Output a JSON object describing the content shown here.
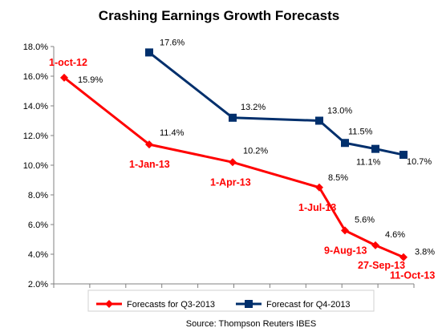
{
  "chart_data": {
    "type": "line",
    "title": "Crashing Earnings Growth Forecasts",
    "source": "Source: Thompson Reuters IBES",
    "ylim": [
      2.0,
      18.0
    ],
    "y_ticks": [
      "2.0%",
      "4.0%",
      "6.0%",
      "8.0%",
      "10.0%",
      "12.0%",
      "14.0%",
      "16.0%",
      "18.0%"
    ],
    "y_tick_values": [
      2,
      4,
      6,
      8,
      10,
      12,
      14,
      16,
      18
    ],
    "x_categories": 10,
    "legend_position": "bottom",
    "grid": false,
    "series": [
      {
        "name": "Forecasts for Q3-2013",
        "color": "#ff0000",
        "marker": "diamond",
        "points": [
          {
            "x": 0,
            "y": 15.9,
            "label": "15.9%",
            "date": "1-oct-12"
          },
          {
            "x": 3,
            "y": 11.4,
            "label": "11.4%",
            "date": "1-Jan-13"
          },
          {
            "x": 6,
            "y": 10.2,
            "label": "10.2%",
            "date": "1-Apr-13"
          },
          {
            "x": 9,
            "y": 8.5,
            "label": "8.5%",
            "date": "1-Jul-13"
          },
          {
            "x": 10,
            "y": 5.6,
            "label": "5.6%",
            "date": "9-Aug-13"
          },
          {
            "x": 11,
            "y": 4.6,
            "label": "4.6%",
            "date": "27-Sep-13"
          },
          {
            "x": 12,
            "y": 3.8,
            "label": "3.8%",
            "date": "11-Oct-13"
          }
        ]
      },
      {
        "name": "Forecast for Q4-2013",
        "color": "#002f6c",
        "marker": "square",
        "points": [
          {
            "x": 3,
            "y": 17.6,
            "label": "17.6%"
          },
          {
            "x": 6,
            "y": 13.2,
            "label": "13.2%"
          },
          {
            "x": 9,
            "y": 13.0,
            "label": "13.0%"
          },
          {
            "x": 10,
            "y": 11.5,
            "label": "11.5%"
          },
          {
            "x": 11,
            "y": 11.1,
            "label": "11.1%"
          },
          {
            "x": 12,
            "y": 10.7,
            "label": "10.7%"
          }
        ]
      }
    ]
  }
}
